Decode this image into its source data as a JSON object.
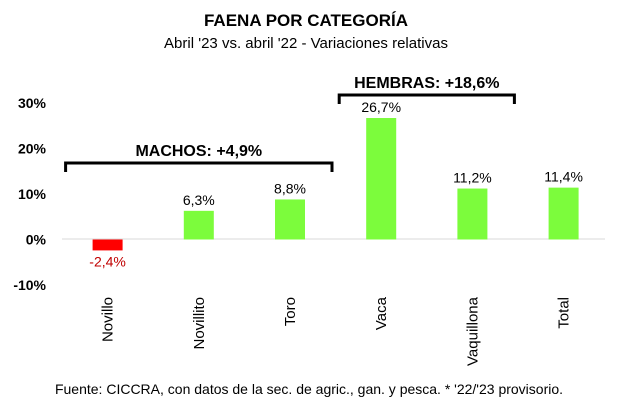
{
  "chart_data": {
    "type": "bar",
    "title": "FAENA POR CATEGORÍA",
    "subtitle": "Abril '23 vs. abril '22 - Variaciones relativas",
    "categories": [
      "Novillo",
      "Novillito",
      "Toro",
      "Vaca",
      "Vaquillona",
      "Total"
    ],
    "values": [
      -2.4,
      6.3,
      8.8,
      26.7,
      11.2,
      11.4
    ],
    "data_labels": [
      "-2,4%",
      "6,3%",
      "8,8%",
      "26,7%",
      "11,2%",
      "11,4%"
    ],
    "y_ticks": [
      {
        "value": 30,
        "label": "30%"
      },
      {
        "value": 20,
        "label": "20%"
      },
      {
        "value": 10,
        "label": "10%"
      },
      {
        "value": 0,
        "label": "0%"
      },
      {
        "value": -10,
        "label": "-10%"
      }
    ],
    "ylim": [
      -10,
      30
    ],
    "grid": false,
    "colors": {
      "positive": "#7cfc3c",
      "negative": "#ff0000",
      "negative_label": "#c00000"
    },
    "groups": [
      {
        "label": "MACHOS: +4,9%",
        "from": 0,
        "to": 2
      },
      {
        "label": "HEMBRAS: +18,6%",
        "from": 3,
        "to": 4
      }
    ],
    "source": "Fuente: CICCRA, con datos de la sec. de agric., gan. y pesca. * '22/'23 provisorio."
  }
}
